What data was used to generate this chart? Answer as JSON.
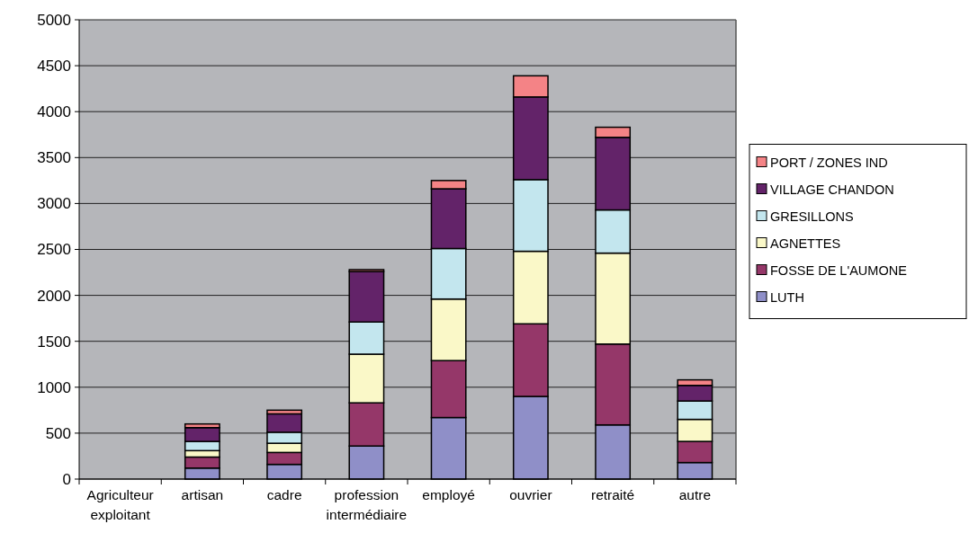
{
  "chart_data": {
    "type": "bar",
    "stacked": true,
    "categories": [
      "Agriculteur exploitant",
      "artisan",
      "cadre",
      "profession intermédiaire",
      "employé",
      "ouvrier",
      "retraité",
      "autre"
    ],
    "series": [
      {
        "name": "LUTH",
        "color": "#8f8fc8",
        "values": [
          0,
          120,
          160,
          360,
          670,
          900,
          590,
          180
        ]
      },
      {
        "name": "FOSSE DE L'AUMONE",
        "color": "#953769",
        "values": [
          0,
          120,
          130,
          470,
          620,
          790,
          880,
          230
        ]
      },
      {
        "name": "AGNETTES",
        "color": "#faf8c8",
        "values": [
          0,
          70,
          100,
          530,
          670,
          790,
          990,
          240
        ]
      },
      {
        "name": "GRESILLONS",
        "color": "#c3e6ee",
        "values": [
          0,
          100,
          120,
          350,
          550,
          780,
          470,
          200
        ]
      },
      {
        "name": "VILLAGE CHANDON",
        "color": "#632369",
        "values": [
          0,
          150,
          200,
          550,
          650,
          900,
          790,
          170
        ]
      },
      {
        "name": "PORT / ZONES IND",
        "color": "#f48386",
        "values": [
          0,
          40,
          40,
          20,
          90,
          230,
          110,
          60
        ]
      }
    ],
    "ylim": [
      0,
      5000
    ],
    "yticks": [
      0,
      500,
      1000,
      1500,
      2000,
      2500,
      3000,
      3500,
      4000,
      4500,
      5000
    ],
    "grid": "y",
    "legend": "right"
  }
}
